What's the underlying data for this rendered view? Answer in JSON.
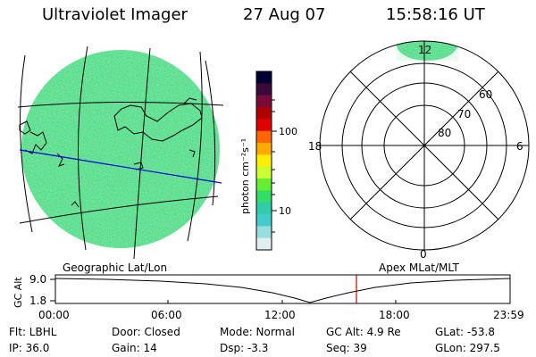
{
  "header": {
    "instrument": "Ultraviolet Imager",
    "date": "27 Aug 07",
    "time": "15:58:16 UT"
  },
  "colorbar": {
    "unit_label": "photon cm⁻²s⁻¹",
    "ticks": [
      "100",
      "10"
    ],
    "colors": [
      "#000033",
      "#3a0a3a",
      "#7a0a3a",
      "#b00000",
      "#e00000",
      "#ff6600",
      "#ffaa00",
      "#ffee00",
      "#ccff33",
      "#66ee33",
      "#33dd66",
      "#33ccaa",
      "#44cccc",
      "#99dddd",
      "#e0eeee"
    ]
  },
  "geo_map": {
    "label": "Geographic Lat/Lon",
    "fill_color": "#55dd88"
  },
  "polar_plot": {
    "label": "Apex MLat/MLT",
    "mlt_labels": {
      "top": "12",
      "left": "18",
      "right": "6",
      "bottom": "0"
    },
    "lat_labels": [
      "60",
      "70",
      "80"
    ]
  },
  "altitude_plot": {
    "axis_title": "GC Alt",
    "y_labels": [
      "9.0",
      "1.8"
    ],
    "x_labels": [
      "00:00",
      "06:00",
      "12:00",
      "18:00",
      "23:59"
    ],
    "current_marker_color": "#cc0000"
  },
  "status": {
    "filter": "Flt: LBHL",
    "ip": "IP: 36.0",
    "door": "Door: Closed",
    "gain": "Gain: 14",
    "mode": "Mode: Normal",
    "dsp": "Dsp:    -3.3",
    "gc_alt": "GC Alt: 4.9 Re",
    "seq": "Seq: 39",
    "glat": "GLat: -53.8",
    "glon": "GLon: 297.5"
  }
}
